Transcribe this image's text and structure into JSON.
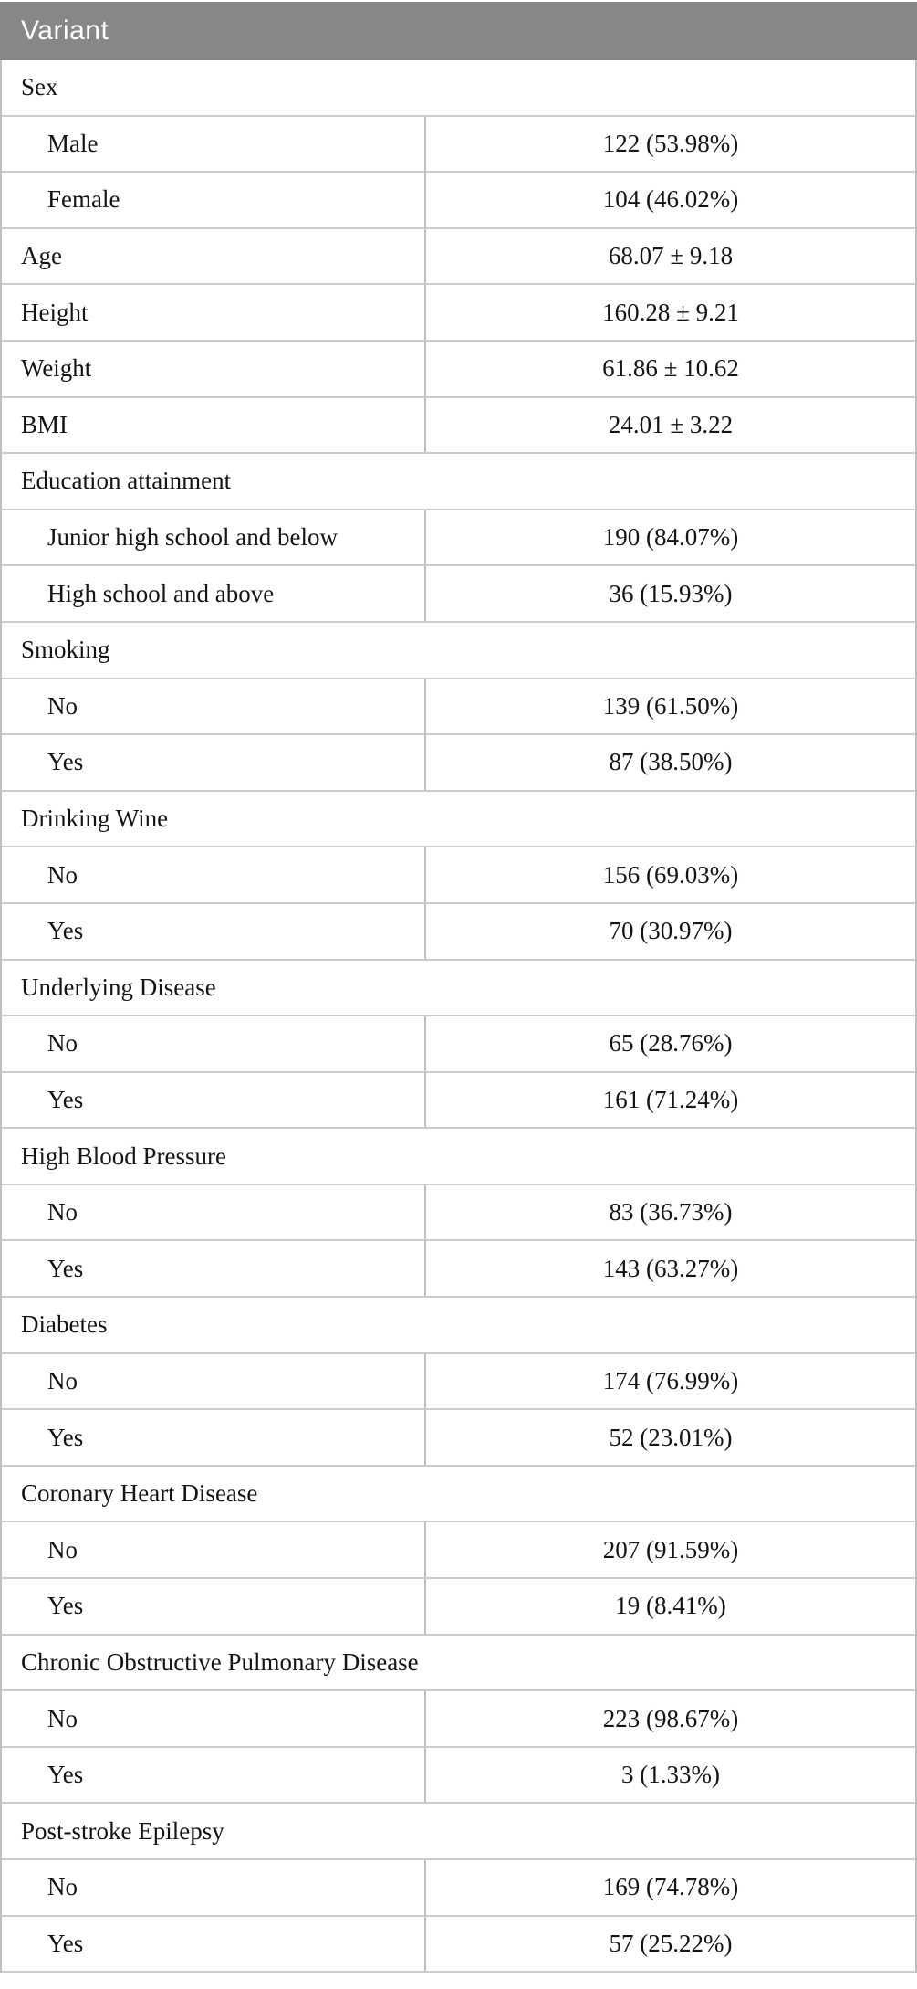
{
  "table": {
    "header": {
      "title": "Variant"
    },
    "colors": {
      "header_bg": "#878787",
      "header_text": "#ffffff",
      "horizontal_border": "#cccccc",
      "vertical_border": "#bfbfbf",
      "body_text": "#141414"
    },
    "rows": [
      {
        "type": "section",
        "label": "Sex"
      },
      {
        "type": "item",
        "indent": true,
        "label": "Male",
        "value": "122 (53.98%)"
      },
      {
        "type": "item",
        "indent": true,
        "label": "Female",
        "value": "104 (46.02%)"
      },
      {
        "type": "item",
        "indent": false,
        "label": "Age",
        "value": "68.07 ± 9.18"
      },
      {
        "type": "item",
        "indent": false,
        "label": "Height",
        "value": "160.28 ± 9.21"
      },
      {
        "type": "item",
        "indent": false,
        "label": "Weight",
        "value": "61.86 ± 10.62"
      },
      {
        "type": "item",
        "indent": false,
        "label": "BMI",
        "value": "24.01 ± 3.22"
      },
      {
        "type": "section",
        "label": "Education attainment"
      },
      {
        "type": "item",
        "indent": true,
        "label": "Junior high school and below",
        "value": "190 (84.07%)"
      },
      {
        "type": "item",
        "indent": true,
        "label": "High school and above",
        "value": "36 (15.93%)"
      },
      {
        "type": "section",
        "label": "Smoking"
      },
      {
        "type": "item",
        "indent": true,
        "label": "No",
        "value": "139 (61.50%)"
      },
      {
        "type": "item",
        "indent": true,
        "label": "Yes",
        "value": "87 (38.50%)"
      },
      {
        "type": "section",
        "label": "Drinking Wine"
      },
      {
        "type": "item",
        "indent": true,
        "label": "No",
        "value": "156 (69.03%)"
      },
      {
        "type": "item",
        "indent": true,
        "label": "Yes",
        "value": "70 (30.97%)"
      },
      {
        "type": "section",
        "label": "Underlying Disease"
      },
      {
        "type": "item",
        "indent": true,
        "label": "No",
        "value": "65 (28.76%)"
      },
      {
        "type": "item",
        "indent": true,
        "label": "Yes",
        "value": "161 (71.24%)"
      },
      {
        "type": "section",
        "label": "High Blood Pressure"
      },
      {
        "type": "item",
        "indent": true,
        "label": "No",
        "value": "83 (36.73%)"
      },
      {
        "type": "item",
        "indent": true,
        "label": "Yes",
        "value": "143 (63.27%)"
      },
      {
        "type": "section",
        "label": "Diabetes"
      },
      {
        "type": "item",
        "indent": true,
        "label": "No",
        "value": "174 (76.99%)"
      },
      {
        "type": "item",
        "indent": true,
        "label": "Yes",
        "value": "52 (23.01%)"
      },
      {
        "type": "section",
        "label": "Coronary Heart Disease"
      },
      {
        "type": "item",
        "indent": true,
        "label": "No",
        "value": "207 (91.59%)"
      },
      {
        "type": "item",
        "indent": true,
        "label": "Yes",
        "value": "19 (8.41%)"
      },
      {
        "type": "section",
        "label": "Chronic Obstructive Pulmonary Disease"
      },
      {
        "type": "item",
        "indent": true,
        "label": "No",
        "value": "223 (98.67%)"
      },
      {
        "type": "item",
        "indent": true,
        "label": "Yes",
        "value": "3 (1.33%)"
      },
      {
        "type": "section",
        "label": "Post-stroke Epilepsy"
      },
      {
        "type": "item",
        "indent": true,
        "label": "No",
        "value": "169 (74.78%)"
      },
      {
        "type": "item",
        "indent": true,
        "label": "Yes",
        "value": "57 (25.22%)"
      }
    ]
  }
}
